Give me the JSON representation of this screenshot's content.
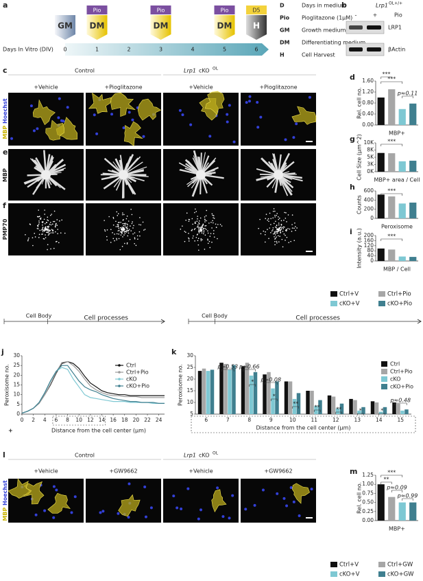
{
  "panels": {
    "a": {
      "letter": "a",
      "stages": [
        {
          "label": "GM"
        },
        {
          "label": "DM",
          "tag": "Pio"
        },
        {
          "label": "DM",
          "tag": "Pio"
        },
        {
          "label": "DM",
          "tag": "Pio"
        },
        {
          "label": "H",
          "tag": "D5"
        }
      ],
      "axis_label": "Days In Vitro (DIV)",
      "days": [
        0,
        1,
        2,
        3,
        4,
        5,
        6
      ],
      "key": [
        {
          "abbr": "D",
          "text": "Days in medium"
        },
        {
          "abbr": "Pio",
          "text": "Pioglitazone (1μM)"
        },
        {
          "abbr": "GM",
          "text": "Growth medium"
        },
        {
          "abbr": "DM",
          "text": "Differentiating medium"
        },
        {
          "abbr": "H",
          "text": "Cell Harvest"
        }
      ]
    },
    "b": {
      "letter": "b",
      "gene": "Lrp1",
      "sup": "OL+/+",
      "lanes": [
        "-",
        "+"
      ],
      "treatment": "Pio",
      "bands": [
        "LRP1",
        "βActin"
      ]
    },
    "c": {
      "letter": "c",
      "groups": [
        "Control",
        "Lrp1",
        "cKO",
        "OL"
      ],
      "conditions": [
        "+Vehicle",
        "+Pioglitazone",
        "+Vehicle",
        "+Pioglitazone"
      ],
      "stain": [
        "MBP",
        "Hoechst"
      ]
    },
    "e": {
      "letter": "e",
      "stain": "MBP"
    },
    "f": {
      "letter": "f",
      "stain": "PMP70"
    },
    "l": {
      "letter": "l",
      "groups": [
        "Control",
        "Lrp1",
        "cKO",
        "OL"
      ],
      "conditions": [
        "+Vehicle",
        "+GW9662",
        "+Vehicle",
        "+GW9662"
      ],
      "stain": [
        "MBP",
        "Hoechst"
      ]
    }
  },
  "chart_data": [
    {
      "type": "bar",
      "panel": "d",
      "ylabel": "Rel. cell no.",
      "xlabel": "MBP+",
      "categories": [
        "Ctrl+V",
        "Ctrl+Pio",
        "cKO+V",
        "cKO+Pio"
      ],
      "values": [
        1.0,
        1.3,
        0.58,
        0.78
      ],
      "colors": [
        "#111111",
        "#a6a6a6",
        "#7ec8d3",
        "#3f7f8f"
      ],
      "ylim": [
        0,
        1.6
      ],
      "yticks": [
        {
          "value": 0,
          "label": "0.00"
        },
        {
          "value": 0.4,
          "label": "0.40"
        },
        {
          "value": 0.8,
          "label": "0.80"
        },
        {
          "value": 1.2,
          "label": "1.20"
        },
        {
          "value": 1.6,
          "label": "1.60"
        }
      ],
      "annotations": [
        "***",
        "***",
        "p≈0.11"
      ]
    },
    {
      "type": "bar",
      "panel": "g",
      "ylabel": "Cell Size (µm^2)",
      "xlabel": "MBP+ area / Cell",
      "categories": [
        "Ctrl+V",
        "Ctrl+Pio",
        "cKO+V",
        "cKO+Pio"
      ],
      "values": [
        6500,
        6400,
        3600,
        3800
      ],
      "colors": [
        "#111111",
        "#a6a6a6",
        "#7ec8d3",
        "#3f7f8f"
      ],
      "ylim": [
        0,
        10000
      ],
      "yticks": [
        {
          "value": 0,
          "label": "0K"
        },
        {
          "value": 2500,
          "label": "3K"
        },
        {
          "value": 5000,
          "label": "5K"
        },
        {
          "value": 7500,
          "label": "8K"
        },
        {
          "value": 10000,
          "label": "10K"
        }
      ],
      "annotations": [
        "***"
      ]
    },
    {
      "type": "bar",
      "panel": "h",
      "ylabel": "Counts",
      "xlabel": "Peroxisome",
      "categories": [
        "Ctrl+V",
        "Ctrl+Pio",
        "cKO+V",
        "cKO+Pio"
      ],
      "values": [
        520,
        480,
        325,
        345
      ],
      "colors": [
        "#111111",
        "#a6a6a6",
        "#7ec8d3",
        "#3f7f8f"
      ],
      "ylim": [
        0,
        600
      ],
      "yticks": [
        0,
        200,
        400,
        600
      ],
      "annotations": [
        "***"
      ]
    },
    {
      "type": "bar",
      "panel": "i",
      "ylabel": "Intensity (a.u.)",
      "xlabel": "MBP / Cell",
      "categories": [
        "Ctrl+V",
        "Ctrl+Pio",
        "cKO+V",
        "cKO+Pio"
      ],
      "values": [
        98,
        90,
        35,
        32
      ],
      "colors": [
        "#111111",
        "#a6a6a6",
        "#7ec8d3",
        "#3f7f8f"
      ],
      "ylim": [
        0,
        200
      ],
      "yticks": [
        0,
        40,
        80,
        120,
        160,
        200
      ],
      "annotations": [
        "***"
      ]
    },
    {
      "type": "line",
      "panel": "j",
      "ylabel": "Peroxisome no.",
      "xlabel": "Distance from the cell center (µm)",
      "header": [
        "Cell Body",
        "Cell processes"
      ],
      "x": [
        0,
        1,
        2,
        3,
        4,
        5,
        6,
        7,
        8,
        9,
        10,
        11,
        12,
        13,
        14,
        15,
        16,
        17,
        18,
        19,
        20,
        21,
        22,
        23,
        24,
        25
      ],
      "series": [
        {
          "name": "Ctrl",
          "color": "#111111",
          "values": [
            0.5,
            1.5,
            3,
            5.5,
            10,
            15,
            21,
            26,
            27,
            26,
            23.5,
            19.5,
            16,
            14,
            12,
            11,
            10.5,
            10,
            10,
            9.5,
            9.5,
            9.5,
            9.5,
            9.5,
            9.5,
            9.5
          ]
        },
        {
          "name": "Ctrl+Pio",
          "color": "#9a9a9a",
          "values": [
            0.5,
            1.5,
            3,
            5.5,
            10,
            15.5,
            21.5,
            26.5,
            27,
            25,
            22,
            18,
            14.5,
            12.5,
            11,
            10,
            9.5,
            9.5,
            9,
            9,
            9,
            8.5,
            8.5,
            8.5,
            8.5,
            8.5
          ]
        },
        {
          "name": "cKO",
          "color": "#7ec8d3",
          "values": [
            0.5,
            1.5,
            3,
            6,
            11,
            17,
            22,
            24,
            23,
            18,
            14,
            10,
            8.5,
            8,
            7.5,
            7,
            6.5,
            6.5,
            6.5,
            6,
            6,
            6,
            6,
            5.5,
            5.5,
            5.5
          ]
        },
        {
          "name": "cKO+Pio",
          "color": "#3f7f8f",
          "values": [
            0.5,
            1.5,
            3,
            6,
            11,
            17,
            22,
            25,
            25,
            21,
            17,
            14,
            12.5,
            11.5,
            10,
            9,
            8,
            7.5,
            7,
            6.5,
            6.5,
            6,
            6,
            6,
            5.5,
            5.5
          ]
        }
      ],
      "xlim": [
        0,
        25
      ],
      "xticks": [
        0,
        2,
        4,
        6,
        8,
        10,
        12,
        14,
        16,
        18,
        20,
        22,
        24
      ],
      "ylim": [
        0,
        30
      ],
      "yticks": [
        0,
        5,
        10,
        15,
        20,
        25,
        30
      ]
    },
    {
      "type": "grouped-bar",
      "panel": "k",
      "ylabel": "Peroxisome no.",
      "xlabel": "Distance from the cell center (µm)",
      "header": [
        "Cell Body",
        "Cell processes"
      ],
      "categories": [
        "6",
        "7",
        "8",
        "9",
        "10",
        "11",
        "12",
        "13",
        "14",
        "15"
      ],
      "series": [
        {
          "name": "Ctrl",
          "color": "#111111",
          "values": [
            23.5,
            27,
            25.5,
            22,
            19,
            15,
            13,
            11.5,
            10.5,
            10
          ]
        },
        {
          "name": "Ctrl+Pio",
          "color": "#a6a6a6",
          "values": [
            24.5,
            26.5,
            27,
            23,
            19,
            15,
            12.5,
            11,
            10,
            9.5
          ]
        },
        {
          "name": "cKO",
          "color": "#7ec8d3",
          "values": [
            23.5,
            24,
            21.5,
            16,
            11.5,
            8.5,
            7.5,
            6.5,
            6,
            6.5
          ]
        },
        {
          "name": "cKO+Pio",
          "color": "#3f7f8f",
          "values": [
            24,
            26,
            23,
            19,
            14,
            11,
            9.5,
            8,
            8,
            7
          ]
        }
      ],
      "ylim": [
        5,
        30
      ],
      "yticks": [
        5,
        10,
        15,
        20,
        25,
        30
      ],
      "annotations": [
        "p≈0.53",
        "p≈0.66",
        "*",
        "p≈0.08",
        "*",
        "**",
        "**",
        "**",
        "*",
        "*",
        "p≈0.48"
      ]
    },
    {
      "type": "bar",
      "panel": "m",
      "ylabel": "Rel. cell no.",
      "xlabel": "MBP+",
      "categories": [
        "Ctrl+V",
        "Ctrl+GW",
        "cKO+V",
        "cKO+GW"
      ],
      "values": [
        1.0,
        0.65,
        0.5,
        0.5
      ],
      "colors": [
        "#111111",
        "#a6a6a6",
        "#7ec8d3",
        "#3f7f8f"
      ],
      "ylim": [
        0,
        1.25
      ],
      "yticks": [
        {
          "value": 0,
          "label": "0.00"
        },
        {
          "value": 0.25,
          "label": "0.25"
        },
        {
          "value": 0.5,
          "label": "0.50"
        },
        {
          "value": 0.75,
          "label": "0.75"
        },
        {
          "value": 1,
          "label": "1.00"
        },
        {
          "value": 1.25,
          "label": "1.25"
        }
      ],
      "annotations": [
        "**",
        "***",
        "p≈0.09",
        "p≈0.99"
      ]
    }
  ]
}
